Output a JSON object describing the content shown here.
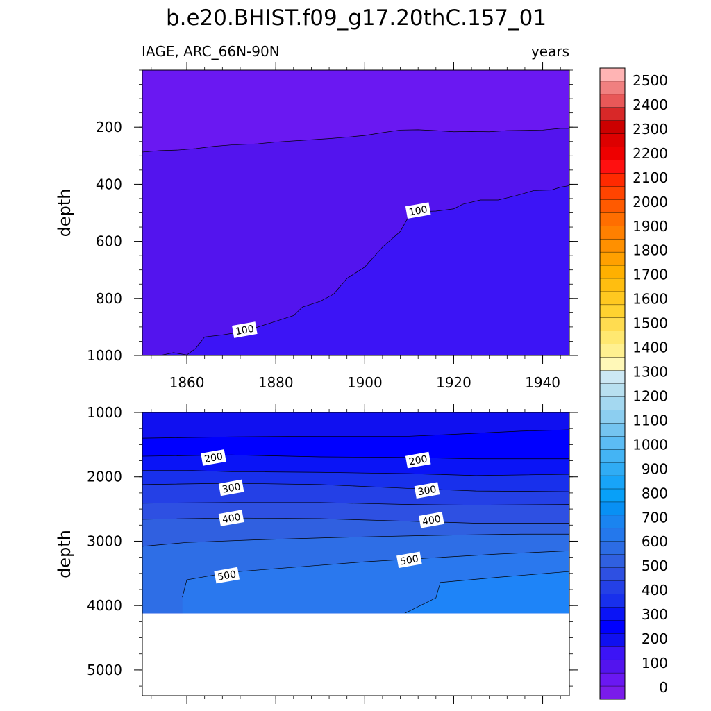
{
  "title": "b.e20.BHIST.f09_g17.20thC.157_01",
  "left_label": "IAGE, ARC_66N-90N",
  "right_label": "years",
  "chart_data": [
    {
      "type": "contour",
      "panel": "upper",
      "ylabel": "depth",
      "xlim": [
        1850,
        1946
      ],
      "ylim": [
        1000,
        0
      ],
      "x_ticks": [
        1860,
        1880,
        1900,
        1920,
        1940
      ],
      "x_tick_labels": [
        "1860",
        "1880",
        "1900",
        "1920",
        "1940"
      ],
      "y_ticks": [
        200,
        400,
        600,
        800,
        1000
      ],
      "y_tick_labels": [
        "200",
        "400",
        "600",
        "800",
        "1000"
      ],
      "contours": [
        {
          "level": 50,
          "color": "#5314ee",
          "points": [
            [
              1850,
              287
            ],
            [
              1854,
              282
            ],
            [
              1858,
              280
            ],
            [
              1862,
              275
            ],
            [
              1866,
              267
            ],
            [
              1870,
              262
            ],
            [
              1876,
              258
            ],
            [
              1880,
              252
            ],
            [
              1886,
              246
            ],
            [
              1892,
              240
            ],
            [
              1896,
              235
            ],
            [
              1900,
              229
            ],
            [
              1904,
              219
            ],
            [
              1908,
              210
            ],
            [
              1912,
              209
            ],
            [
              1916,
              212
            ],
            [
              1920,
              216
            ],
            [
              1924,
              215
            ],
            [
              1928,
              216
            ],
            [
              1932,
              212
            ],
            [
              1936,
              211
            ],
            [
              1940,
              210
            ],
            [
              1944,
              204
            ],
            [
              1946,
              204
            ]
          ]
        },
        {
          "level": 100,
          "color": "#3c14f6",
          "points": [
            [
              1854,
              1000
            ],
            [
              1857,
              990
            ],
            [
              1860,
              998
            ],
            [
              1862,
              975
            ],
            [
              1864,
              935
            ],
            [
              1868,
              928
            ],
            [
              1872,
              918
            ],
            [
              1876,
              900
            ],
            [
              1880,
              880
            ],
            [
              1884,
              860
            ],
            [
              1886,
              830
            ],
            [
              1890,
              810
            ],
            [
              1893,
              785
            ],
            [
              1896,
              730
            ],
            [
              1900,
              690
            ],
            [
              1904,
              620
            ],
            [
              1908,
              565
            ],
            [
              1910,
              510
            ],
            [
              1914,
              495
            ],
            [
              1916,
              494
            ],
            [
              1920,
              486
            ],
            [
              1922,
              470
            ],
            [
              1926,
              455
            ],
            [
              1930,
              455
            ],
            [
              1934,
              440
            ],
            [
              1938,
              422
            ],
            [
              1942,
              420
            ],
            [
              1944,
              410
            ],
            [
              1946,
              405
            ]
          ]
        }
      ],
      "fill_colors": [
        "#6a18f2",
        "#5314ee",
        "#3c14f6"
      ],
      "line_labels": [
        {
          "text": "100",
          "x": 1912,
          "y": 492
        },
        {
          "text": "100",
          "x": 1873,
          "y": 910
        }
      ]
    },
    {
      "type": "contour",
      "panel": "lower",
      "ylabel": "depth",
      "xlim": [
        1850,
        1946
      ],
      "ylim": [
        5400,
        1000
      ],
      "y_ticks": [
        1000,
        2000,
        3000,
        4000,
        5000
      ],
      "y_tick_labels": [
        "1000",
        "2000",
        "3000",
        "4000",
        "5000"
      ],
      "data_bottom": 4120,
      "contours": [
        {
          "level": 150,
          "color": "#0000ff",
          "points": [
            [
              1850,
              1400
            ],
            [
              1870,
              1380
            ],
            [
              1890,
              1370
            ],
            [
              1910,
              1370
            ],
            [
              1920,
              1340
            ],
            [
              1935,
              1290
            ],
            [
              1946,
              1270
            ]
          ]
        },
        {
          "level": 200,
          "color": "#0a14f6",
          "points": [
            [
              1850,
              1680
            ],
            [
              1870,
              1660
            ],
            [
              1890,
              1690
            ],
            [
              1910,
              1700
            ],
            [
              1925,
              1720
            ],
            [
              1946,
              1720
            ]
          ]
        },
        {
          "level": 250,
          "color": "#1830ec",
          "points": [
            [
              1850,
              1900
            ],
            [
              1860,
              1900
            ],
            [
              1870,
              1920
            ],
            [
              1890,
              1930
            ],
            [
              1910,
              1950
            ],
            [
              1925,
              1980
            ],
            [
              1946,
              1960
            ]
          ]
        },
        {
          "level": 300,
          "color": "#2440e6",
          "points": [
            [
              1850,
              2120
            ],
            [
              1870,
              2100
            ],
            [
              1890,
              2120
            ],
            [
              1910,
              2180
            ],
            [
              1925,
              2220
            ],
            [
              1946,
              2230
            ]
          ]
        },
        {
          "level": 350,
          "color": "#2e50e2",
          "points": [
            [
              1850,
              2410
            ],
            [
              1870,
              2400
            ],
            [
              1890,
              2400
            ],
            [
              1910,
              2430
            ],
            [
              1925,
              2440
            ],
            [
              1946,
              2430
            ]
          ]
        },
        {
          "level": 400,
          "color": "#3060e0",
          "points": [
            [
              1850,
              2660
            ],
            [
              1870,
              2640
            ],
            [
              1890,
              2650
            ],
            [
              1910,
              2690
            ],
            [
              1925,
              2720
            ],
            [
              1946,
              2720
            ]
          ]
        },
        {
          "level": 450,
          "color": "#2e6ee6",
          "points": [
            [
              1850,
              3080
            ],
            [
              1860,
              3020
            ],
            [
              1875,
              2980
            ],
            [
              1895,
              2940
            ],
            [
              1915,
              2910
            ],
            [
              1935,
              2890
            ],
            [
              1946,
              2890
            ]
          ]
        },
        {
          "level": 500,
          "color": "#2a78ee",
          "points": [
            [
              1859,
              3870
            ],
            [
              1860,
              3600
            ],
            [
              1870,
              3480
            ],
            [
              1885,
              3400
            ],
            [
              1900,
              3320
            ],
            [
              1915,
              3260
            ],
            [
              1930,
              3200
            ],
            [
              1946,
              3150
            ]
          ]
        },
        {
          "level": 550,
          "color": "#1e84f8",
          "points": [
            [
              1909,
              4120
            ],
            [
              1916,
              3880
            ],
            [
              1917,
              3640
            ],
            [
              1930,
              3560
            ],
            [
              1946,
              3470
            ]
          ]
        }
      ],
      "fill_colors": [
        "#1010f0",
        "#0000ff",
        "#0a14f6",
        "#1830ec",
        "#2440e6",
        "#2e50e2",
        "#3060e0",
        "#2e6ee6",
        "#2a78ee",
        "#1e84f8"
      ],
      "line_labels": [
        {
          "text": "200",
          "x": 1866,
          "y": 1700
        },
        {
          "text": "200",
          "x": 1912,
          "y": 1740
        },
        {
          "text": "300",
          "x": 1870,
          "y": 2170
        },
        {
          "text": "300",
          "x": 1914,
          "y": 2210
        },
        {
          "text": "400",
          "x": 1870,
          "y": 2640
        },
        {
          "text": "400",
          "x": 1915,
          "y": 2670
        },
        {
          "text": "500",
          "x": 1869,
          "y": 3530
        },
        {
          "text": "500",
          "x": 1910,
          "y": 3290
        }
      ]
    }
  ],
  "colorbar": {
    "labels": [
      "2500",
      "2400",
      "2300",
      "2200",
      "2100",
      "2000",
      "1900",
      "1800",
      "1700",
      "1600",
      "1500",
      "1400",
      "1300",
      "1200",
      "1100",
      "1000",
      "900",
      "800",
      "700",
      "600",
      "500",
      "400",
      "300",
      "200",
      "100",
      "0"
    ],
    "colors": [
      "#ffb4b4",
      "#f08080",
      "#e85858",
      "#d82828",
      "#cc0000",
      "#dd0000",
      "#ee0000",
      "#ff1010",
      "#ff2a00",
      "#ff4400",
      "#ff5a00",
      "#ff6e00",
      "#ff8000",
      "#ff9000",
      "#ffa000",
      "#ffb000",
      "#ffbe10",
      "#ffc820",
      "#ffd230",
      "#ffdc50",
      "#ffe870",
      "#fff090",
      "#fff8b8",
      "#cce8f4",
      "#b8e0f0",
      "#a4d8f0",
      "#8ccef0",
      "#74c4f0",
      "#5cbcf4",
      "#44b4f4",
      "#30acf4",
      "#18a4f8",
      "#08a0f8",
      "#0890f4",
      "#1a84f0",
      "#2478ec",
      "#2c6ce4",
      "#3060e0",
      "#2e50e2",
      "#2440e6",
      "#1830ec",
      "#0a14f6",
      "#0000ff",
      "#1010f0",
      "#3c14f6",
      "#5314ee",
      "#6a18f2",
      "#7a1cea"
    ]
  }
}
